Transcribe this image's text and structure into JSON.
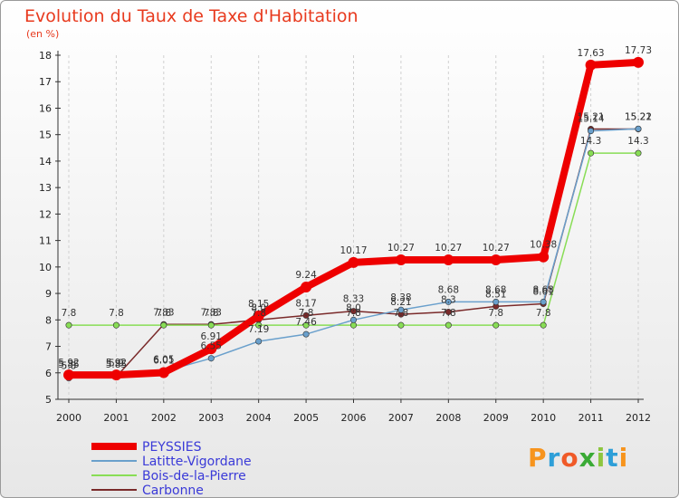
{
  "header": {
    "title": "Evolution du Taux de Taxe d'Habitation",
    "subtitle": "(en %)"
  },
  "logo": {
    "text": "Proxiti",
    "letter_colors": [
      "#f7941d",
      "#2e9fd8",
      "#f05a28",
      "#3aaa35",
      "#8dc63f",
      "#2e9fd8",
      "#f7941d"
    ]
  },
  "chart_data": {
    "type": "line",
    "title": "Evolution du Taux de Taxe d'Habitation",
    "subtitle": "(en %)",
    "xlabel": "",
    "ylabel": "",
    "x": [
      "2000",
      "2001",
      "2002",
      "2003",
      "2004",
      "2005",
      "2006",
      "2007",
      "2008",
      "2009",
      "2010",
      "2011",
      "2012"
    ],
    "ylim": [
      5,
      18
    ],
    "yticks": [
      5,
      6,
      7,
      8,
      9,
      10,
      11,
      12,
      13,
      14,
      15,
      16,
      17,
      18
    ],
    "grid": "vertical-dashed",
    "legend_position": "bottom-left",
    "series": [
      {
        "name": "PEYSSIES",
        "color": "#ee0000",
        "width": 8,
        "values": [
          5.92,
          5.92,
          6.01,
          6.91,
          8.15,
          9.24,
          10.17,
          10.27,
          10.27,
          10.27,
          10.38,
          17.63,
          17.73
        ],
        "labels": [
          "5.92",
          "5.92",
          "6.01",
          "6.91",
          "8.15",
          "9.24",
          "10.17",
          "10.27",
          "10.27",
          "10.27",
          "10.38",
          "17.63",
          "17.73"
        ]
      },
      {
        "name": "Latitte-Vigordane",
        "color": "#6aa0cc",
        "width": 1.5,
        "values": [
          5.8,
          5.9,
          6.05,
          6.55,
          7.19,
          7.46,
          8.0,
          8.38,
          8.68,
          8.68,
          8.68,
          15.14,
          15.22
        ],
        "labels": [
          "5.8",
          "5.9",
          "6.05",
          "6.55",
          "7.19",
          "7.46",
          "8.0",
          "8.38",
          "8.68",
          "8.68",
          "8.68",
          "15.14",
          "15.22"
        ]
      },
      {
        "name": "Bois-de-la-Pierre",
        "color": "#88dd55",
        "width": 1.5,
        "values": [
          7.8,
          7.8,
          7.8,
          7.8,
          7.8,
          7.8,
          7.8,
          7.8,
          7.8,
          7.8,
          7.8,
          14.3,
          14.3
        ],
        "labels": [
          "7.8",
          "7.8",
          "7.8",
          "7.8",
          "7.8",
          "7.8",
          "7.8",
          "7.8",
          "7.8",
          "7.8",
          "7.8",
          "14.3",
          "14.3"
        ]
      },
      {
        "name": "Carbonne",
        "color": "#7a2a2a",
        "width": 1.5,
        "values": [
          5.85,
          5.85,
          7.83,
          7.83,
          8.0,
          8.17,
          8.33,
          8.21,
          8.3,
          8.51,
          8.61,
          15.21,
          15.21
        ],
        "labels": [
          "5.85",
          "5.85",
          "7.83",
          "7.83",
          "8.0",
          "8.17",
          "8.33",
          "8.21",
          "8.3",
          "8.51",
          "8.61",
          "15.21",
          "15.21"
        ]
      }
    ]
  }
}
